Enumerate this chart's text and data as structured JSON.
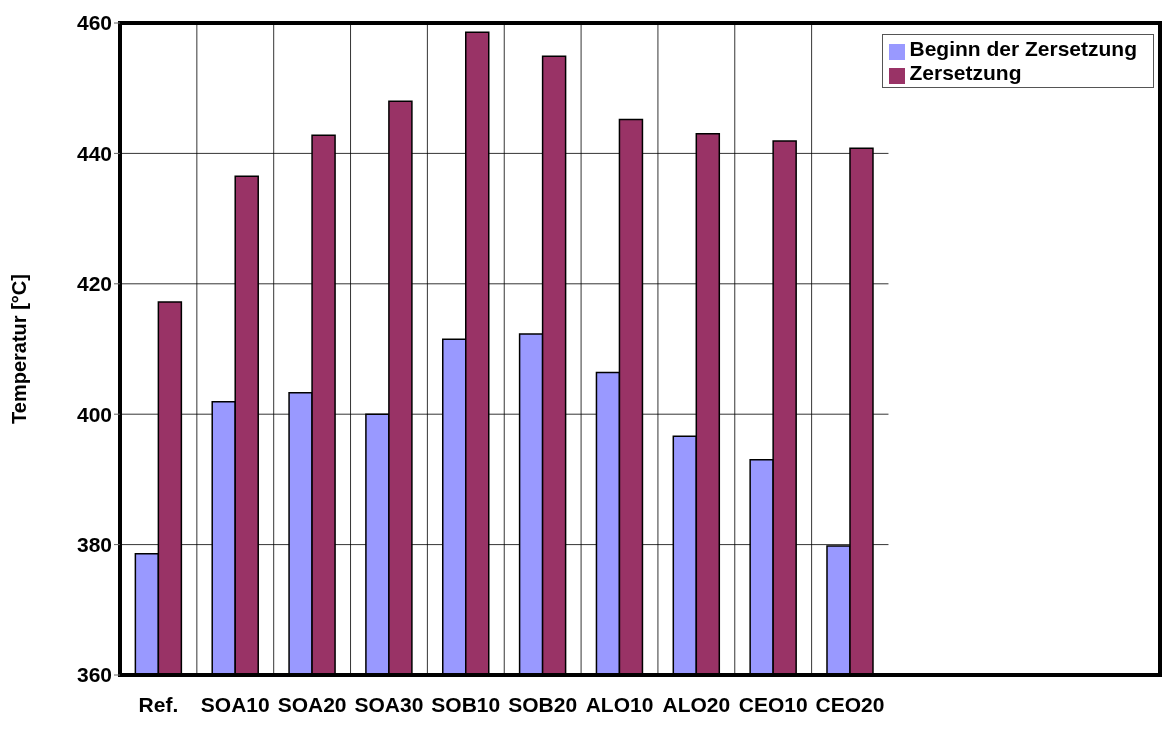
{
  "chart_data": {
    "type": "bar",
    "ylabel": "Temperatur [°C]",
    "categories": [
      "Ref.",
      "SOA10",
      "SOA20",
      "SOA30",
      "SOB10",
      "SOB20",
      "ALO10",
      "ALO20",
      "CEO10",
      "CEO20"
    ],
    "series": [
      {
        "name": "Beginn der Zersetzung",
        "color": "#9999ff",
        "values": [
          378.6,
          401.9,
          403.3,
          400.0,
          411.5,
          412.3,
          406.4,
          396.6,
          393.0,
          379.8
        ]
      },
      {
        "name": "Zersetzung",
        "color": "#993366",
        "values": [
          417.2,
          436.5,
          442.8,
          448.0,
          458.6,
          454.9,
          445.2,
          443.0,
          441.9,
          440.8
        ]
      }
    ],
    "ylim": [
      360,
      460
    ],
    "yticks": [
      360,
      380,
      400,
      420,
      440,
      460
    ],
    "grid": true,
    "legend": "top right"
  }
}
